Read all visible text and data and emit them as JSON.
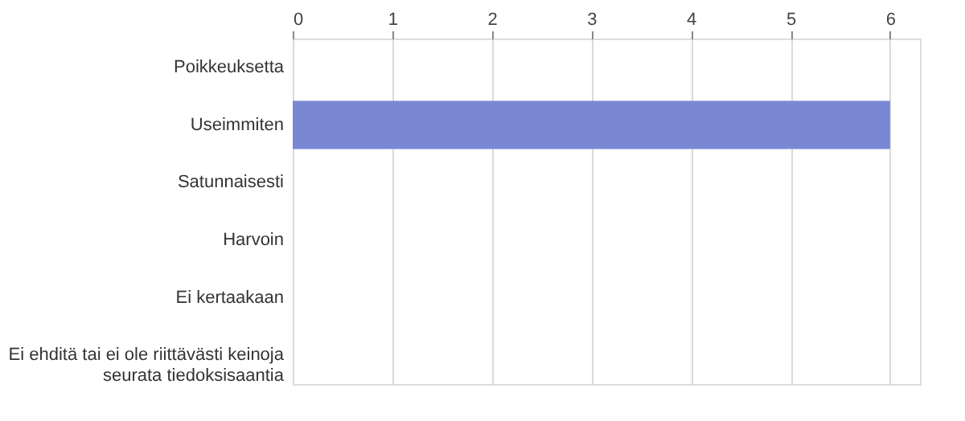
{
  "chart_data": {
    "type": "bar",
    "orientation": "horizontal",
    "categories": [
      "Poikkeuksetta",
      "Useimmiten",
      "Satunnaisesti",
      "Harvoin",
      "Ei kertaakaan",
      "Ei ehditä tai ei ole riittävästi keinoja seurata tiedoksisaantia"
    ],
    "values": [
      0,
      6,
      0,
      0,
      0,
      0
    ],
    "color": "#7a88d4",
    "xlim": [
      0,
      6.3
    ],
    "xticks": [
      0,
      1,
      2,
      3,
      4,
      5,
      6
    ],
    "grid": "x"
  }
}
